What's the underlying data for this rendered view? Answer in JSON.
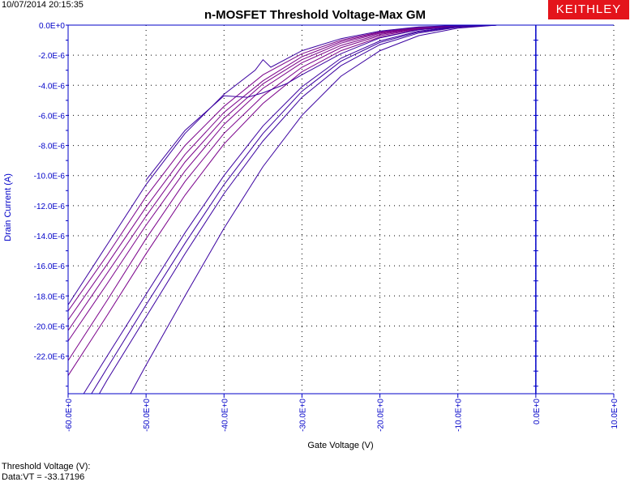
{
  "header": {
    "timestamp": "10/07/2014 20:15:35",
    "logo_text": "KEITHLEY"
  },
  "result": {
    "label": "Threshold Voltage (V):",
    "value": "Data:VT = -33.17196"
  },
  "colors": {
    "axis": "#0000c8",
    "curve": "#7a008a",
    "curve_dark": "#3a00a0",
    "grid": "#000000",
    "logo_bg": "#e4141b"
  },
  "chart_data": {
    "type": "line",
    "title": "n-MOSFET Threshold Voltage-Max GM",
    "xlabel": "Gate Voltage (V)",
    "ylabel": "Drain Current (A)",
    "xlim": [
      -60,
      10
    ],
    "ylim": [
      -2.45e-05,
      0
    ],
    "grid": true,
    "x_ticks": [
      -60,
      -50,
      -40,
      -30,
      -20,
      -10,
      0,
      10
    ],
    "x_tick_labels": [
      "-60.0E+0",
      "-50.0E+0",
      "-40.0E+0",
      "-30.0E+0",
      "-20.0E+0",
      "-10.0E+0",
      "0.0E+0",
      "10.0E+0"
    ],
    "y_ticks": [
      0,
      -2e-06,
      -4e-06,
      -6e-06,
      -8e-06,
      -1e-05,
      -1.2e-05,
      -1.4e-05,
      -1.6e-05,
      -1.8e-05,
      -2e-05,
      -2.2e-05
    ],
    "y_tick_labels": [
      "0.0E+0",
      "-2.0E-6",
      "-4.0E-6",
      "-6.0E-6",
      "-8.0E-6",
      "-10.0E-6",
      "-12.0E-6",
      "-14.0E-6",
      "-16.0E-6",
      "-18.0E-6",
      "-20.0E-6",
      "-22.0E-6"
    ],
    "series": [
      {
        "x": [
          -60,
          -55,
          -50,
          -45,
          -40,
          -35,
          -30,
          -25,
          -20,
          -15,
          -10,
          -5,
          0
        ],
        "y": [
          -1.9e-05,
          -1.53e-05,
          -1.14e-05,
          -8e-06,
          -5.4e-06,
          -3.3e-06,
          -1.9e-06,
          -1e-06,
          -4.5e-07,
          -1.5e-07,
          -3e-08,
          0,
          0
        ]
      },
      {
        "x": [
          -60,
          -55,
          -50,
          -45,
          -40,
          -35,
          -30,
          -25,
          -20,
          -15,
          -10,
          -5,
          0
        ],
        "y": [
          -1.96e-05,
          -1.59e-05,
          -1.21e-05,
          -8.6e-06,
          -5.8e-06,
          -3.7e-06,
          -2.1e-06,
          -1.1e-06,
          -5e-07,
          -1.8e-07,
          -4e-08,
          0,
          0
        ]
      },
      {
        "x": [
          -60,
          -55,
          -50,
          -45,
          -40,
          -35,
          -30,
          -25,
          -20,
          -15,
          -10,
          -5,
          0
        ],
        "y": [
          -2.03e-05,
          -1.65e-05,
          -1.27e-05,
          -9.1e-06,
          -6.2e-06,
          -3.9e-06,
          -2.3e-06,
          -1.2e-06,
          -5.5e-07,
          -2e-07,
          -5e-08,
          0,
          0
        ]
      },
      {
        "x": [
          -60,
          -55,
          -50,
          -45,
          -40,
          -35,
          -30,
          -25,
          -20,
          -15,
          -10,
          -5,
          0
        ],
        "y": [
          -2.1e-05,
          -1.72e-05,
          -1.33e-05,
          -9.7e-06,
          -6.6e-06,
          -4.2e-06,
          -2.5e-06,
          -1.35e-06,
          -6.2e-07,
          -2.3e-07,
          -6e-08,
          0,
          0
        ]
      },
      {
        "x": [
          -60,
          -55,
          -50,
          -45,
          -40,
          -35,
          -30,
          -25,
          -20,
          -15,
          -10,
          -5,
          0
        ],
        "y": [
          -2.23e-05,
          -1.83e-05,
          -1.42e-05,
          -1.04e-05,
          -7.2e-06,
          -4.7e-06,
          -2.8e-06,
          -1.5e-06,
          -7e-07,
          -2.7e-07,
          -7e-08,
          0,
          0
        ]
      },
      {
        "x": [
          -60,
          -55,
          -50,
          -45,
          -40,
          -35,
          -30,
          -25,
          -20,
          -15,
          -10,
          -5,
          0
        ],
        "y": [
          -2.33e-05,
          -1.93e-05,
          -1.52e-05,
          -1.13e-05,
          -7.9e-06,
          -5.2e-06,
          -3.1e-06,
          -1.7e-06,
          -8e-07,
          -3.1e-07,
          -8e-08,
          0,
          0
        ]
      },
      {
        "x": [
          -58,
          -55,
          -50,
          -45,
          -40,
          -35,
          -30,
          -25,
          -20,
          -15,
          -10,
          -5,
          0
        ],
        "y": [
          -2.45e-05,
          -2.2e-05,
          -1.79e-05,
          -1.38e-05,
          -1e-05,
          -6.7e-06,
          -4.1e-06,
          -2.2e-06,
          -1.05e-06,
          -4e-07,
          -1e-07,
          0,
          0
        ]
      },
      {
        "x": [
          -57,
          -55,
          -50,
          -45,
          -40,
          -35,
          -30,
          -25,
          -20,
          -15,
          -10,
          -5,
          0
        ],
        "y": [
          -2.45e-05,
          -2.28e-05,
          -1.86e-05,
          -1.45e-05,
          -1.06e-05,
          -7.2e-06,
          -4.4e-06,
          -2.4e-06,
          -1.15e-06,
          -4.5e-07,
          -1.2e-07,
          0,
          0
        ]
      },
      {
        "x": [
          -56,
          -55,
          -50,
          -45,
          -40,
          -35,
          -30,
          -25,
          -20,
          -15,
          -10,
          -5,
          0
        ],
        "y": [
          -2.45e-05,
          -2.36e-05,
          -1.94e-05,
          -1.52e-05,
          -1.12e-05,
          -7.7e-06,
          -4.8e-06,
          -2.7e-06,
          -1.3e-06,
          -5.2e-07,
          -1.4e-07,
          0,
          0
        ]
      },
      {
        "x": [
          -52,
          -50,
          -45,
          -40,
          -35,
          -30,
          -25,
          -20,
          -15,
          -10,
          -5,
          0
        ],
        "y": [
          -2.45e-05,
          -2.26e-05,
          -1.8e-05,
          -1.35e-05,
          -9.4e-06,
          -6e-06,
          -3.4e-06,
          -1.7e-06,
          -7e-07,
          -2e-07,
          0,
          0
        ]
      },
      {
        "x": [
          -60,
          -55,
          -50,
          -45,
          -40,
          -36,
          -35,
          -34,
          -30,
          -25,
          -20,
          -15,
          -10,
          -5,
          0
        ],
        "y": [
          -1.86e-05,
          -1.46e-05,
          -1.06e-05,
          -7.2e-06,
          -4.6e-06,
          -3e-06,
          -2.3e-06,
          -2.8e-06,
          -1.7e-06,
          -9e-07,
          -4e-07,
          -1.2e-07,
          -2e-08,
          0,
          0
        ]
      },
      {
        "x": [
          -50,
          -45,
          -40,
          -37,
          -35,
          -32,
          -30,
          -25,
          -20,
          -15,
          -10,
          -5,
          0
        ],
        "y": [
          -1.03e-05,
          -7e-06,
          -4.7e-06,
          -4.8e-06,
          -4.5e-06,
          -3.9e-06,
          -3.3e-06,
          -1.9e-06,
          -8.5e-07,
          -3e-07,
          -8e-08,
          0,
          0
        ]
      }
    ]
  }
}
